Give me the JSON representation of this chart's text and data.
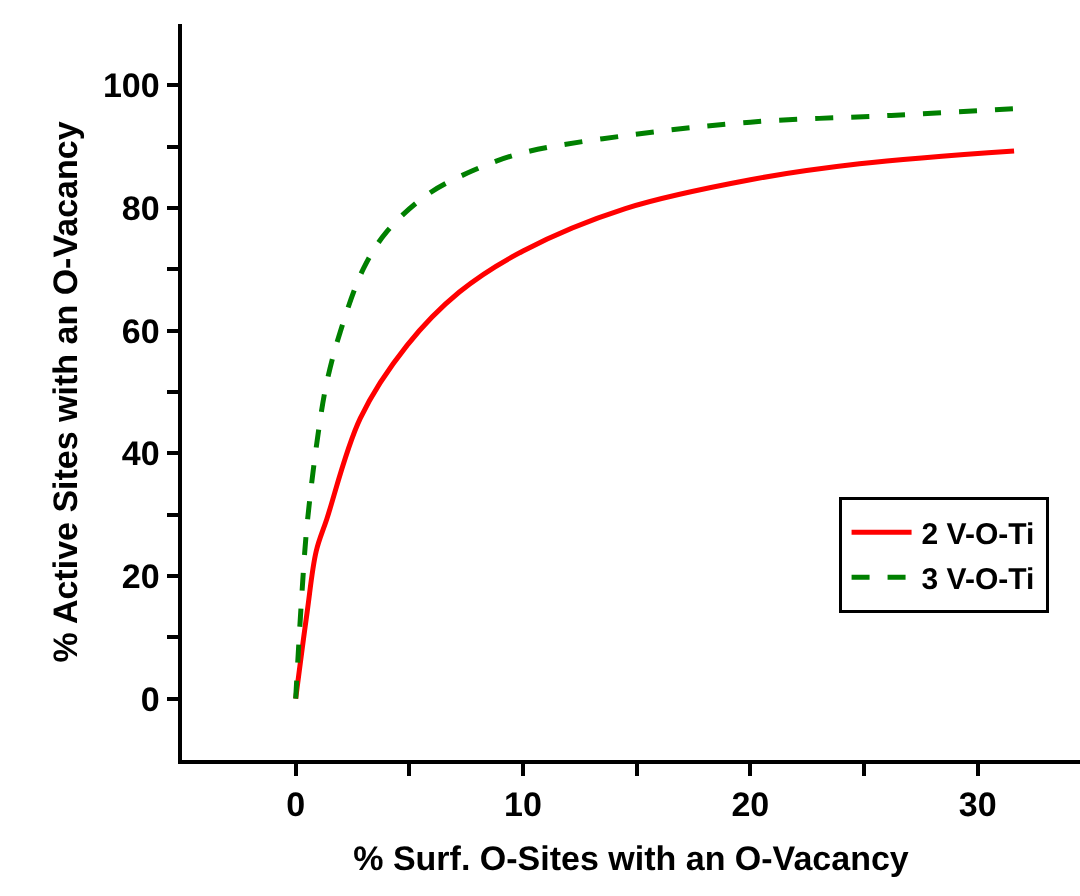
{
  "chart_data": {
    "type": "line",
    "xlabel": "% Surf. O-Sites with an O-Vacancy",
    "ylabel": "% Active Sites with an O-Vacancy",
    "xlim": [
      -5,
      34.5
    ],
    "ylim": [
      -10,
      110
    ],
    "xticks": [
      0,
      {
        "value": 5,
        "label": null
      },
      10,
      {
        "value": 15,
        "label": null
      },
      20,
      {
        "value": 25,
        "label": null
      },
      30
    ],
    "yticks": [
      0,
      {
        "value": 10,
        "label": null
      },
      20,
      {
        "value": 30,
        "label": null
      },
      40,
      {
        "value": 50,
        "label": null
      },
      60,
      {
        "value": 70,
        "label": null
      },
      80,
      {
        "value": 90,
        "label": null
      },
      100
    ],
    "legend": "bottom right",
    "marker": "none",
    "series": [
      {
        "name": "2 V-O-Ti",
        "color": "#ff0000",
        "line_style": "solid",
        "x": [
          0,
          0.5,
          0.9,
          1.37,
          2.84,
          4.9,
          7.2,
          10,
          14.5,
          20,
          24.8,
          31.6
        ],
        "values": [
          0,
          14,
          24,
          29.3,
          45.7,
          57.6,
          66.3,
          73,
          79.9,
          84.6,
          87.2,
          89.3
        ]
      },
      {
        "name": "3 V-O-Ti",
        "color": "#008000",
        "line_style": "dashed",
        "x": [
          0,
          0.26,
          0.5,
          1.0,
          1.37,
          1.96,
          2.98,
          4.0,
          5.76,
          7.8,
          10,
          14.5,
          20,
          26.2,
          31.6
        ],
        "values": [
          0,
          16.3,
          28.3,
          43.5,
          51.6,
          59.8,
          70.1,
          76.1,
          82.1,
          86.1,
          89,
          91.8,
          94,
          95.1,
          96.2
        ]
      }
    ]
  }
}
